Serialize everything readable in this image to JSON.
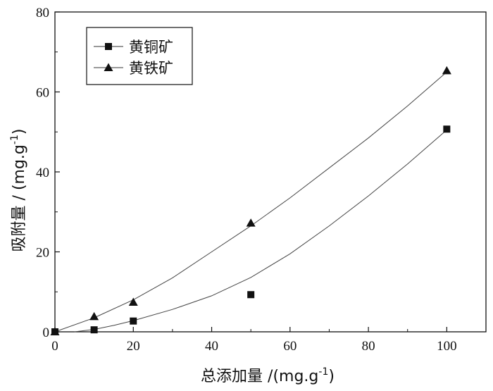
{
  "chart_data": {
    "type": "scatter",
    "xlabel": "总添加量 /(mg.g",
    "xlabel_sup": "-1",
    "xlabel_end": ")",
    "ylabel": "吸附量 / (mg.g",
    "ylabel_sup": "-1",
    "ylabel_end": ")",
    "xlim": [
      0,
      110
    ],
    "ylim": [
      0,
      80
    ],
    "xticks": [
      "0",
      "20",
      "40",
      "60",
      "80",
      "100"
    ],
    "xtick_values": [
      0,
      20,
      40,
      60,
      80,
      100
    ],
    "yticks": [
      "0",
      "20",
      "40",
      "60",
      "80"
    ],
    "ytick_values": [
      0,
      20,
      40,
      60,
      80
    ],
    "legend_position": "top-left",
    "series": [
      {
        "name": "黄铜矿",
        "marker": "square",
        "x": [
          0,
          10,
          20,
          50,
          100
        ],
        "y": [
          0,
          0.5,
          2.7,
          9.3,
          50.7
        ],
        "fit_x": [
          5,
          10,
          15,
          20,
          30,
          40,
          50,
          60,
          70,
          80,
          90,
          100
        ],
        "fit_y": [
          0,
          0.6,
          1.6,
          2.8,
          5.6,
          9.0,
          13.6,
          19.5,
          26.5,
          34.0,
          42.0,
          50.5
        ]
      },
      {
        "name": "黄铁矿",
        "marker": "triangle",
        "x": [
          0,
          10,
          20,
          50,
          100
        ],
        "y": [
          0,
          3.8,
          7.4,
          27.2,
          65.3
        ],
        "fit_x": [
          0,
          10,
          20,
          30,
          40,
          50,
          60,
          70,
          80,
          90,
          100
        ],
        "fit_y": [
          0,
          3.5,
          8.0,
          13.5,
          20.0,
          26.5,
          33.5,
          41.0,
          48.5,
          56.5,
          65.0
        ]
      }
    ]
  }
}
